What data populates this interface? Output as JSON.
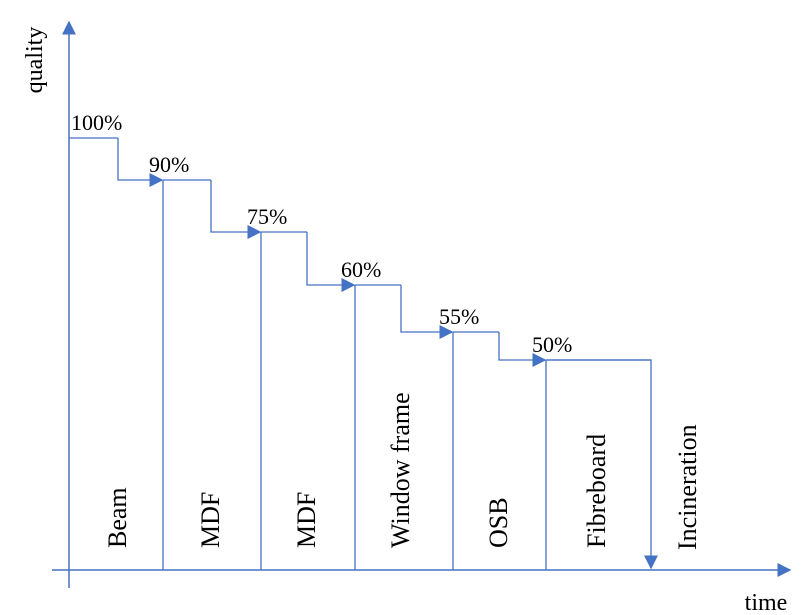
{
  "axes": {
    "y_label": "quality",
    "x_label": "time",
    "color": "#4472C4"
  },
  "stages": [
    {
      "product": "Beam",
      "quality": "100%"
    },
    {
      "product": "MDF",
      "quality": "90%"
    },
    {
      "product": "MDF",
      "quality": "75%"
    },
    {
      "product": "Window frame",
      "quality": "60%"
    },
    {
      "product": "OSB",
      "quality": "55%"
    },
    {
      "product": "Fibreboard",
      "quality": "50%"
    }
  ],
  "end_stage": {
    "product": "Incineration"
  }
}
